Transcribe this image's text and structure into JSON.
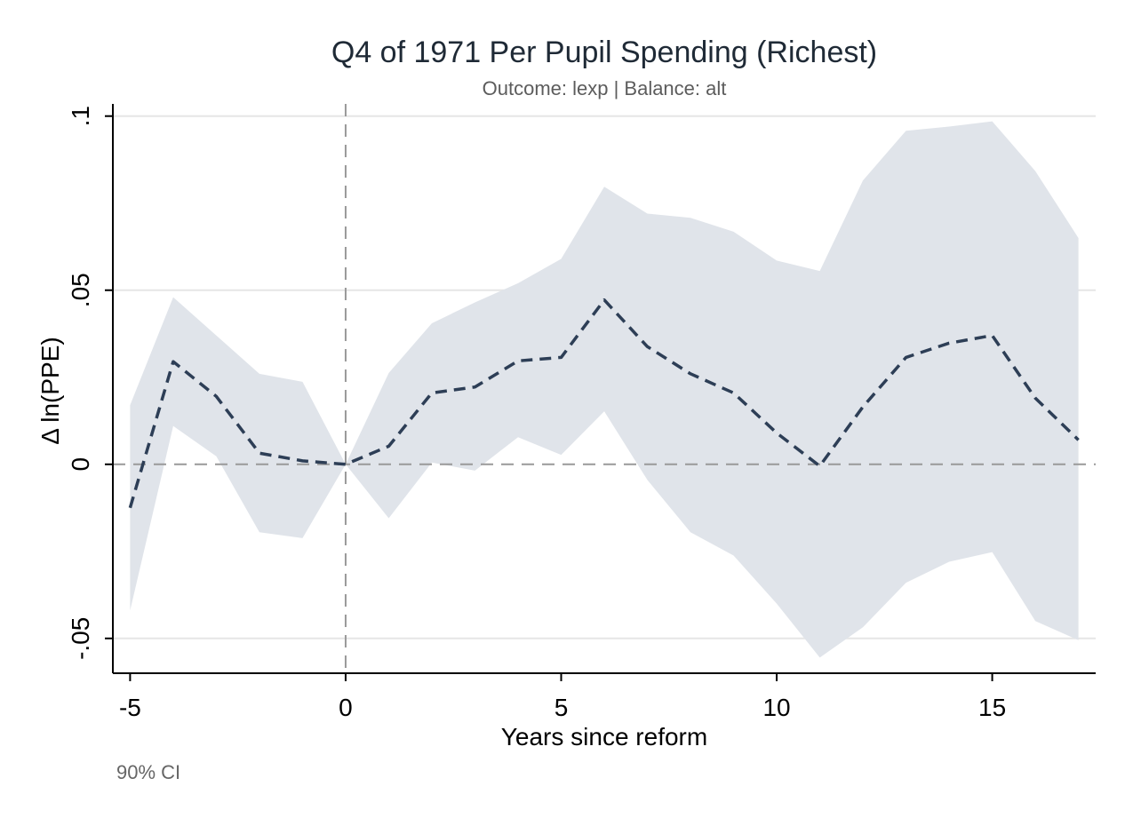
{
  "chart_data": {
    "type": "line",
    "title": "Q4 of 1971 Per Pupil Spending (Richest)",
    "subtitle": "Outcome: lexp | Balance: alt",
    "xlabel": "Years since reform",
    "ylabel": "Δ ln(PPE)",
    "note": "90% CI",
    "xlim": [
      -5.4,
      17.4
    ],
    "ylim": [
      -0.06,
      0.1035
    ],
    "xticks": [
      -5,
      0,
      5,
      10,
      15
    ],
    "xtick_labels": [
      "-5",
      "0",
      "5",
      "10",
      "15"
    ],
    "yticks": [
      -0.05,
      0,
      0.05,
      0.1
    ],
    "ytick_labels": [
      "-.05",
      "0",
      ".05",
      ".1"
    ],
    "grid": true,
    "reference_lines": {
      "x": 0,
      "y": 0
    },
    "x": [
      -5,
      -4,
      -3,
      -2,
      -1,
      0,
      1,
      2,
      3,
      4,
      5,
      6,
      7,
      8,
      9,
      10,
      11,
      12,
      13,
      14,
      15,
      16,
      17
    ],
    "series": [
      {
        "role": "estimate",
        "values": [
          -0.0125,
          0.0295,
          0.0195,
          0.0032,
          0.001,
          0.0,
          0.0052,
          0.0205,
          0.0222,
          0.0297,
          0.0307,
          0.0472,
          0.0338,
          0.026,
          0.0205,
          0.009,
          -0.0005,
          0.0165,
          0.0307,
          0.0348,
          0.037,
          0.019,
          0.007
        ]
      },
      {
        "role": "ci_upper",
        "values": [
          0.017,
          0.048,
          0.037,
          0.026,
          0.0237,
          0.0,
          0.0262,
          0.0405,
          0.0465,
          0.052,
          0.059,
          0.0797,
          0.072,
          0.0708,
          0.0668,
          0.0585,
          0.0555,
          0.0815,
          0.0958,
          0.097,
          0.0985,
          0.0842,
          0.065
        ]
      },
      {
        "role": "ci_lower",
        "values": [
          -0.042,
          0.011,
          0.0023,
          -0.0195,
          -0.0212,
          0.0,
          -0.0155,
          0.0005,
          -0.0018,
          0.0078,
          0.0027,
          0.0152,
          -0.0045,
          -0.0195,
          -0.0262,
          -0.04,
          -0.0555,
          -0.0468,
          -0.034,
          -0.028,
          -0.0252,
          -0.045,
          -0.0505
        ]
      }
    ],
    "colors": {
      "estimate_line": "#2d3e56",
      "ci_band": "#e0e4ea",
      "grid": "#e6e6e6",
      "reference": "#999999",
      "axis": "#000000",
      "title": "#1f2a36",
      "subtitle": "#5c5c5c",
      "note": "#666666"
    }
  }
}
